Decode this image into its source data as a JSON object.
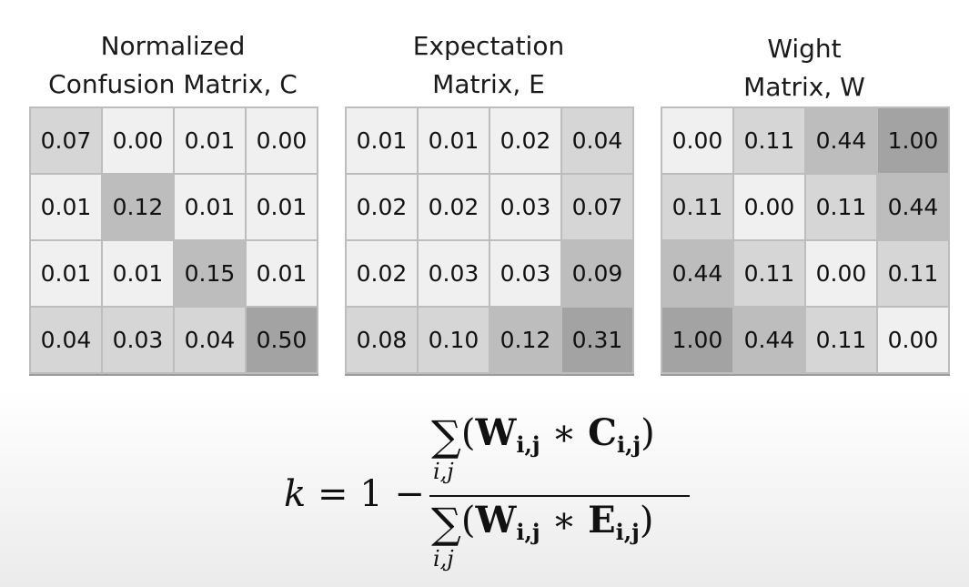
{
  "matrices": [
    {
      "title_line1": "Normalized",
      "title_line2": "Confusion Matrix, C",
      "rows": [
        [
          "0.07",
          "0.00",
          "0.01",
          "0.00"
        ],
        [
          "0.01",
          "0.12",
          "0.01",
          "0.01"
        ],
        [
          "0.01",
          "0.01",
          "0.15",
          "0.01"
        ],
        [
          "0.04",
          "0.03",
          "0.04",
          "0.50"
        ]
      ],
      "shades": [
        [
          "#d6d6d6",
          "#f0f0f0",
          "#f0f0f0",
          "#f0f0f0"
        ],
        [
          "#f0f0f0",
          "#bdbdbd",
          "#f0f0f0",
          "#f0f0f0"
        ],
        [
          "#f0f0f0",
          "#f0f0f0",
          "#bdbdbd",
          "#f0f0f0"
        ],
        [
          "#d6d6d6",
          "#d6d6d6",
          "#d6d6d6",
          "#a3a3a3"
        ]
      ]
    },
    {
      "title_line1": "Expectation",
      "title_line2": "Matrix, E",
      "rows": [
        [
          "0.01",
          "0.01",
          "0.02",
          "0.04"
        ],
        [
          "0.02",
          "0.02",
          "0.03",
          "0.07"
        ],
        [
          "0.02",
          "0.03",
          "0.03",
          "0.09"
        ],
        [
          "0.08",
          "0.10",
          "0.12",
          "0.31"
        ]
      ],
      "shades": [
        [
          "#f0f0f0",
          "#f0f0f0",
          "#f0f0f0",
          "#d6d6d6"
        ],
        [
          "#f0f0f0",
          "#f0f0f0",
          "#f0f0f0",
          "#d6d6d6"
        ],
        [
          "#f0f0f0",
          "#f0f0f0",
          "#f0f0f0",
          "#bdbdbd"
        ],
        [
          "#d6d6d6",
          "#d6d6d6",
          "#bdbdbd",
          "#a3a3a3"
        ]
      ]
    },
    {
      "title_line1": "Wight",
      "title_line2": "Matrix, W",
      "rows": [
        [
          "0.00",
          "0.11",
          "0.44",
          "1.00"
        ],
        [
          "0.11",
          "0.00",
          "0.11",
          "0.44"
        ],
        [
          "0.44",
          "0.11",
          "0.00",
          "0.11"
        ],
        [
          "1.00",
          "0.44",
          "0.11",
          "0.00"
        ]
      ],
      "shades": [
        [
          "#f0f0f0",
          "#d6d6d6",
          "#bdbdbd",
          "#a3a3a3"
        ],
        [
          "#d6d6d6",
          "#f0f0f0",
          "#d6d6d6",
          "#bdbdbd"
        ],
        [
          "#bdbdbd",
          "#d6d6d6",
          "#f0f0f0",
          "#d6d6d6"
        ],
        [
          "#a3a3a3",
          "#bdbdbd",
          "#d6d6d6",
          "#f0f0f0"
        ]
      ]
    }
  ],
  "formula": {
    "lhs_var": "k",
    "lhs_rest": " = 1 − ",
    "sum_symbol": "∑",
    "sum_index": "i,j",
    "open_paren": "(",
    "close_paren": ")",
    "times": " ∗ ",
    "weight_letter": "W",
    "numerator_letter": "C",
    "denominator_letter": "E",
    "index_bold": "i,j"
  }
}
